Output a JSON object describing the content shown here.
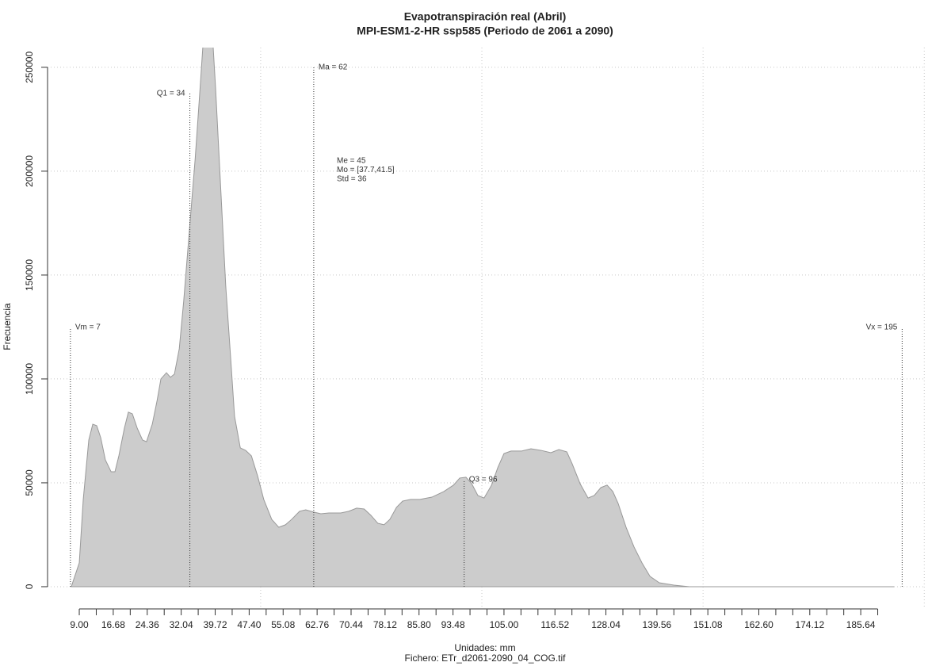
{
  "chart_data": {
    "type": "area",
    "title": "Evapotranspiración real (Abril)",
    "subtitle": "MPI-ESM1-2-HR ssp585 (Periodo de 2061 a 2090)",
    "xlabel": "Unidades: mm",
    "caption": "Fichero: ETr_d2061-2090_04_COG.tif",
    "ylabel": "Frecuencia",
    "color": "#cccccc",
    "line_color": "#999999",
    "x": [
      7.2,
      9,
      9.9,
      11.15,
      12.05,
      12.94,
      13.84,
      14.9,
      16.2,
      17.06,
      17.95,
      19.2,
      20.1,
      21.0,
      22.1,
      23.3,
      24.2,
      25.5,
      26.6,
      27.45,
      28.7,
      29.6,
      30.5,
      31.6,
      32.6,
      33.9,
      35.2,
      36.2,
      37.0,
      38.2,
      39.2,
      39.8,
      40.9,
      42.1,
      43.2,
      44.1,
      45.4,
      46.6,
      47.9,
      49.3,
      50.7,
      52.5,
      54.1,
      55.6,
      57.0,
      58.8,
      60.2,
      62.0,
      63.6,
      65.4,
      68.1,
      69.9,
      71.7,
      73.4,
      74.9,
      76.5,
      77.9,
      79.2,
      80.7,
      82.1,
      83.9,
      86.0,
      88.7,
      91.4,
      93.6,
      95.0,
      96.4,
      97.7,
      99.1,
      100.5,
      102.2,
      103.6,
      105.0,
      106.6,
      109.0,
      111.1,
      113.4,
      115.6,
      117.4,
      119.2,
      120.4,
      122.2,
      124.0,
      125.4,
      126.9,
      128.3,
      129.6,
      130.8,
      132.6,
      134.4,
      136.2,
      138.0,
      140.1,
      143.4,
      146.9,
      193.2
    ],
    "values": [
      0,
      11450,
      42000,
      70600,
      78200,
      77500,
      71800,
      61000,
      55300,
      55300,
      63000,
      76300,
      84000,
      83200,
      76300,
      70600,
      69800,
      78200,
      89700,
      100000,
      103000,
      100800,
      102300,
      114500,
      137400,
      171800,
      206000,
      236600,
      262000,
      280000,
      262000,
      240500,
      194700,
      145000,
      110700,
      82000,
      66800,
      65600,
      63000,
      53400,
      42000,
      32400,
      28600,
      29800,
      32400,
      36300,
      37000,
      35900,
      35100,
      35500,
      35500,
      36300,
      37800,
      37400,
      34400,
      30500,
      29800,
      32400,
      38200,
      41200,
      42000,
      42000,
      43100,
      45800,
      48900,
      52300,
      52700,
      49600,
      43900,
      42700,
      48900,
      57300,
      64100,
      65300,
      65300,
      66400,
      65600,
      64500,
      66000,
      64900,
      59200,
      49600,
      42700,
      43900,
      47700,
      48900,
      45800,
      40100,
      28600,
      19100,
      11450,
      5000,
      1900,
      760,
      0,
      0
    ],
    "xlim": [
      1.83,
      200.31
    ],
    "ylim": [
      -10700,
      259500
    ],
    "yticks": [
      0,
      50000,
      100000,
      150000,
      200000,
      250000
    ],
    "xticks": [
      {
        "value": 9,
        "label": "9.00"
      },
      {
        "value": 16.68,
        "label": "16.68"
      },
      {
        "value": 24.36,
        "label": "24.36"
      },
      {
        "value": 32.04,
        "label": "32.04"
      },
      {
        "value": 39.72,
        "label": "39.72"
      },
      {
        "value": 47.4,
        "label": "47.40"
      },
      {
        "value": 55.08,
        "label": "55.08"
      },
      {
        "value": 62.76,
        "label": "62.76"
      },
      {
        "value": 70.44,
        "label": "70.44"
      },
      {
        "value": 78.12,
        "label": "78.12"
      },
      {
        "value": 85.8,
        "label": "85.80"
      },
      {
        "value": 93.48,
        "label": "93.48"
      },
      {
        "value": 105,
        "label": "105.00"
      },
      {
        "value": 116.52,
        "label": "116.52"
      },
      {
        "value": 128.04,
        "label": "128.04"
      },
      {
        "value": 139.56,
        "label": "139.56"
      },
      {
        "value": 151.08,
        "label": "151.08"
      },
      {
        "value": 162.6,
        "label": "162.60"
      },
      {
        "value": 174.12,
        "label": "174.12"
      },
      {
        "value": 185.64,
        "label": "185.64"
      }
    ],
    "xminorticks": [
      12.84,
      20.52,
      28.2,
      35.88,
      43.56,
      51.24,
      58.92,
      66.6,
      74.28,
      81.96,
      89.64,
      97.32,
      101.16,
      108.84,
      112.68,
      120.36,
      124.2,
      131.88,
      135.72,
      143.4,
      147.24,
      154.92,
      158.76,
      166.44,
      170.28,
      177.96,
      181.8,
      189.48
    ],
    "xgrid": [
      50,
      100,
      150,
      200
    ],
    "grid": true,
    "annotations": [
      {
        "label": "Vm = 7",
        "x": 7,
        "y": 124800,
        "side": "right"
      },
      {
        "label": "Q1 = 34",
        "x": 34,
        "y": 237400,
        "side": "left"
      },
      {
        "label": "Ma = 62",
        "x": 62,
        "y": 250000,
        "side": "right"
      },
      {
        "label": "Q3 = 96",
        "x": 96,
        "y": 51500,
        "side": "right"
      },
      {
        "label": "Vx = 195",
        "x": 195,
        "y": 124800,
        "side": "left"
      }
    ],
    "stats": [
      "Me = 45",
      "Mo = [37.7,41.5]",
      "Std = 36"
    ]
  }
}
